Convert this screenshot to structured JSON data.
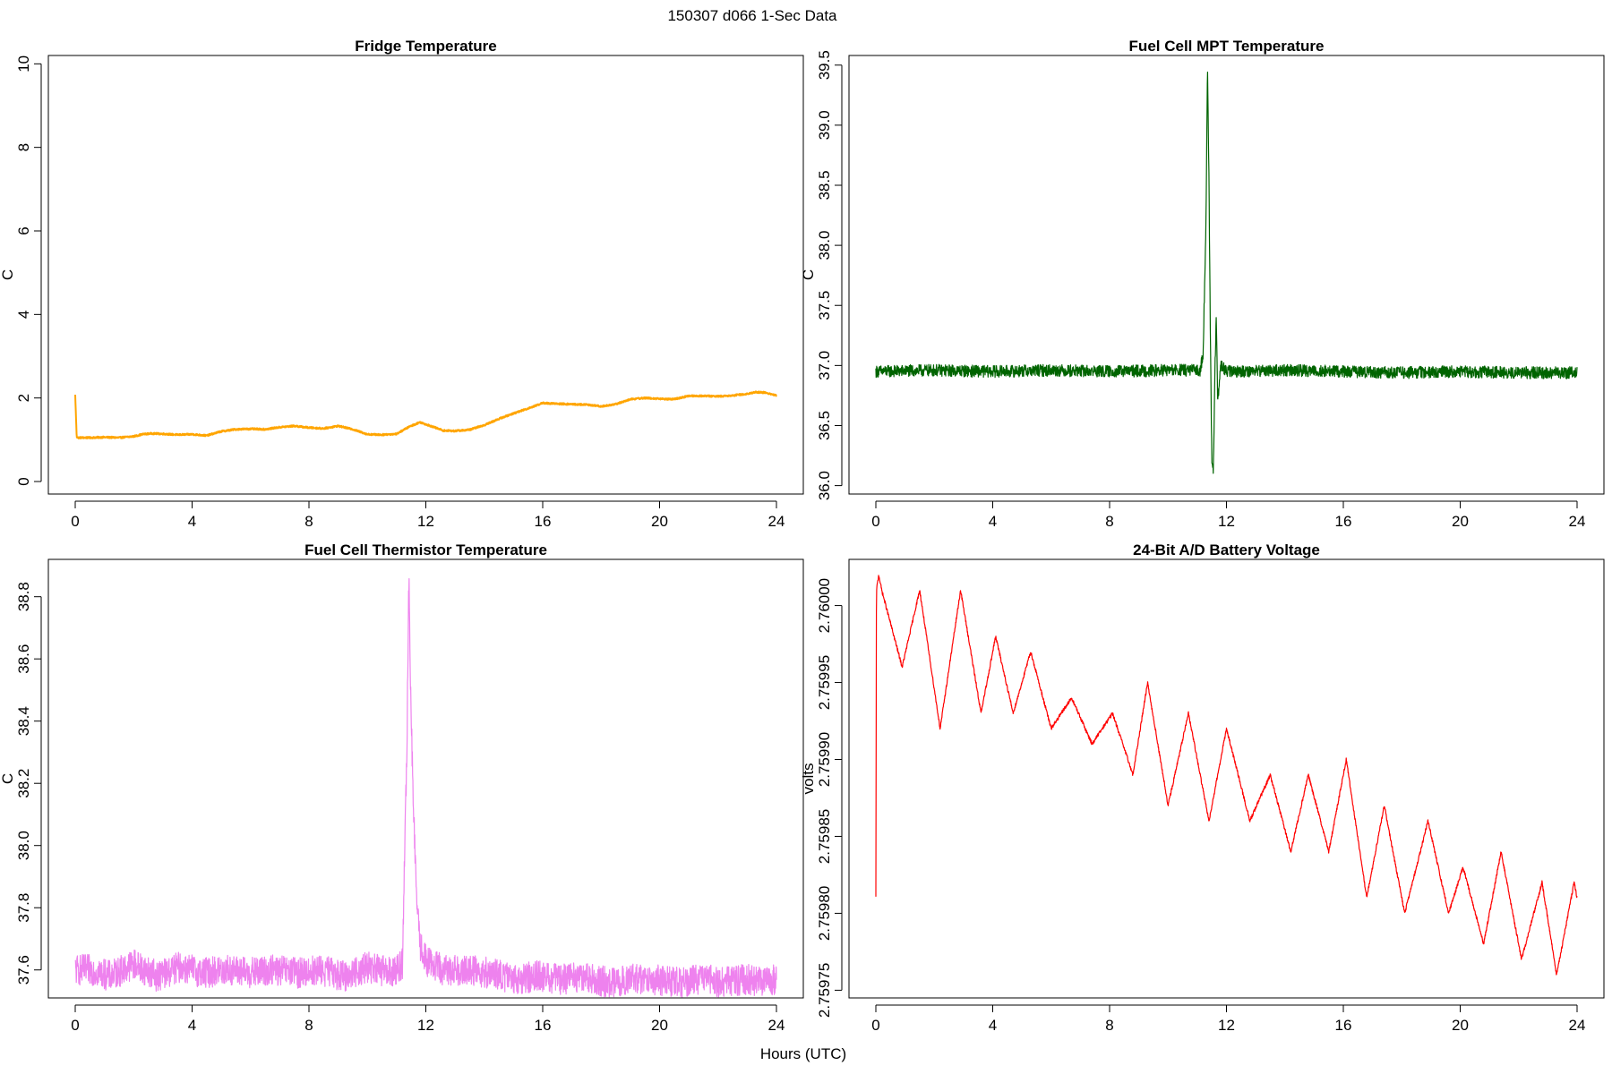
{
  "figure": {
    "title": "150307   d066   1-Sec Data",
    "xlabel": "Hours (UTC)"
  },
  "chart_data": [
    {
      "type": "line",
      "title": "Fridge Temperature",
      "ylabel": "C",
      "color": "#ffa500",
      "xlim": [
        0,
        24
      ],
      "ylim": [
        -0.3,
        10.2
      ],
      "xticks": [
        0,
        4,
        8,
        12,
        16,
        20,
        24
      ],
      "yticks": [
        "0",
        "2",
        "4",
        "6",
        "8",
        "10"
      ],
      "noise": 0.02,
      "series": [
        {
          "name": "Fridge Temperature",
          "x": [
            0,
            0.05,
            0.1,
            0.5,
            1,
            1.5,
            2,
            2.3,
            2.6,
            3,
            3.5,
            4,
            4.5,
            5,
            5.5,
            6,
            6.5,
            7,
            7.5,
            8,
            8.5,
            9,
            9.5,
            10,
            10.5,
            11,
            11.4,
            11.8,
            12.2,
            12.6,
            13,
            13.5,
            14,
            14.5,
            15,
            15.5,
            16,
            16.5,
            17,
            17.5,
            18,
            18.5,
            19,
            19.5,
            20,
            20.5,
            21,
            21.5,
            22,
            22.5,
            23,
            23.3,
            23.6,
            24
          ],
          "y": [
            2.07,
            1.07,
            1.05,
            1.05,
            1.06,
            1.05,
            1.08,
            1.13,
            1.15,
            1.14,
            1.12,
            1.13,
            1.1,
            1.2,
            1.25,
            1.26,
            1.25,
            1.3,
            1.33,
            1.29,
            1.27,
            1.33,
            1.25,
            1.13,
            1.12,
            1.14,
            1.3,
            1.42,
            1.32,
            1.22,
            1.21,
            1.24,
            1.35,
            1.5,
            1.63,
            1.75,
            1.88,
            1.86,
            1.85,
            1.84,
            1.8,
            1.85,
            1.97,
            2.0,
            1.98,
            1.97,
            2.05,
            2.05,
            2.04,
            2.06,
            2.1,
            2.14,
            2.13,
            2.06
          ]
        }
      ]
    },
    {
      "type": "line",
      "title": "Fuel Cell MPT Temperature",
      "ylabel": "C",
      "color": "#006400",
      "xlim": [
        0,
        24
      ],
      "ylim": [
        35.93,
        39.58
      ],
      "xticks": [
        0,
        4,
        8,
        12,
        16,
        20,
        24
      ],
      "yticks": [
        "36.0",
        "36.5",
        "37.0",
        "37.5",
        "38.0",
        "38.5",
        "39.0",
        "39.5"
      ],
      "noise": 0.05,
      "series": [
        {
          "name": "Fuel Cell MPT Temperature",
          "x": [
            0,
            2,
            4,
            6,
            8,
            10,
            11.1,
            11.2,
            11.3,
            11.35,
            11.4,
            11.45,
            11.5,
            11.55,
            11.6,
            11.65,
            11.7,
            11.8,
            12,
            14,
            16,
            18,
            20,
            22,
            24
          ],
          "y": [
            36.95,
            36.96,
            36.95,
            36.96,
            36.95,
            36.96,
            36.96,
            37.1,
            38.2,
            39.5,
            38.6,
            37.2,
            36.2,
            36.1,
            36.9,
            37.4,
            36.7,
            37.0,
            36.95,
            36.96,
            36.95,
            36.94,
            36.95,
            36.94,
            36.94
          ]
        }
      ]
    },
    {
      "type": "line",
      "title": "Fuel Cell Thermistor Temperature",
      "ylabel": "C",
      "color": "#ee82ee",
      "xlim": [
        0,
        24
      ],
      "ylim": [
        37.51,
        38.92
      ],
      "xticks": [
        0,
        4,
        8,
        12,
        16,
        20,
        24
      ],
      "yticks": [
        "37.6",
        "37.8",
        "38.0",
        "38.2",
        "38.4",
        "38.6",
        "38.8"
      ],
      "noise": 0.05,
      "series": [
        {
          "name": "Fuel Cell Thermistor Temperature",
          "x": [
            0,
            0.6,
            1.2,
            2.0,
            2.8,
            3.6,
            4.4,
            5.2,
            6.0,
            6.8,
            7.6,
            8.4,
            9.2,
            10.0,
            10.8,
            11.2,
            11.35,
            11.42,
            11.5,
            11.6,
            11.7,
            11.8,
            12.0,
            12.6,
            13.4,
            14.2,
            15.0,
            15.8,
            16.6,
            17.4,
            18.2,
            19.0,
            19.8,
            20.6,
            21.4,
            22.2,
            23.0,
            23.6,
            24
          ],
          "y": [
            37.6,
            37.6,
            37.58,
            37.62,
            37.58,
            37.61,
            37.59,
            37.6,
            37.59,
            37.6,
            37.59,
            37.6,
            37.58,
            37.61,
            37.59,
            37.62,
            38.3,
            38.86,
            38.4,
            38.05,
            37.8,
            37.68,
            37.63,
            37.6,
            37.6,
            37.59,
            37.57,
            37.58,
            37.57,
            37.58,
            37.56,
            37.57,
            37.57,
            37.56,
            37.57,
            37.56,
            37.57,
            37.56,
            37.57
          ]
        }
      ]
    },
    {
      "type": "line",
      "title": "24-Bit A/D Battery Voltage",
      "ylabel": "volts",
      "color": "#ff0000",
      "xlim": [
        0,
        24
      ],
      "ylim": [
        2.759745,
        2.76003
      ],
      "xticks": [
        0,
        4,
        8,
        12,
        16,
        20,
        24
      ],
      "yticks": [
        "2.75975",
        "2.75980",
        "2.75985",
        "2.75990",
        "2.75995",
        "2.76000"
      ],
      "noise": 1.2e-06,
      "series": [
        {
          "name": "24-Bit A/D Battery Voltage",
          "x": [
            0,
            0.02,
            0.1,
            0.2,
            0.9,
            1.5,
            2.2,
            2.9,
            3.6,
            4.1,
            4.7,
            5.3,
            6.0,
            6.7,
            7.4,
            8.1,
            8.8,
            9.3,
            10.0,
            10.7,
            11.4,
            12.0,
            12.8,
            13.5,
            14.2,
            14.8,
            15.5,
            16.1,
            16.8,
            17.4,
            18.1,
            18.9,
            19.6,
            20.1,
            20.8,
            21.4,
            22.1,
            22.8,
            23.3,
            23.9,
            24
          ],
          "y": [
            2.75981,
            2.76001,
            2.76002,
            2.76001,
            2.75996,
            2.76001,
            2.75992,
            2.76001,
            2.75993,
            2.75998,
            2.75993,
            2.75997,
            2.75992,
            2.75994,
            2.75991,
            2.75993,
            2.75989,
            2.75995,
            2.75987,
            2.75993,
            2.75986,
            2.75992,
            2.75986,
            2.75989,
            2.75984,
            2.75989,
            2.75984,
            2.7599,
            2.75981,
            2.75987,
            2.7598,
            2.75986,
            2.7598,
            2.75983,
            2.75978,
            2.75984,
            2.75977,
            2.75982,
            2.75976,
            2.75982,
            2.75981
          ]
        }
      ]
    }
  ]
}
